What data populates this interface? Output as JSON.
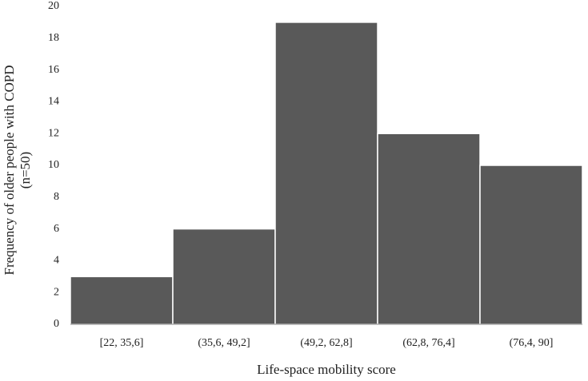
{
  "chart_data": {
    "type": "bar",
    "categories": [
      "[22, 35,6]",
      "(35,6, 49,2]",
      "(49,2, 62,8]",
      "(62,8, 76,4]",
      "(76,4, 90]"
    ],
    "values": [
      3,
      6,
      19,
      12,
      10
    ],
    "color": "#595959",
    "xlabel": "Life-space mobility score",
    "ylabel": [
      "Frequency of older people with COPD",
      "(n=50)"
    ],
    "ylim": [
      0,
      20
    ],
    "yticks": [
      0,
      2,
      4,
      6,
      8,
      10,
      12,
      14,
      16,
      18,
      20
    ],
    "grid": false
  }
}
